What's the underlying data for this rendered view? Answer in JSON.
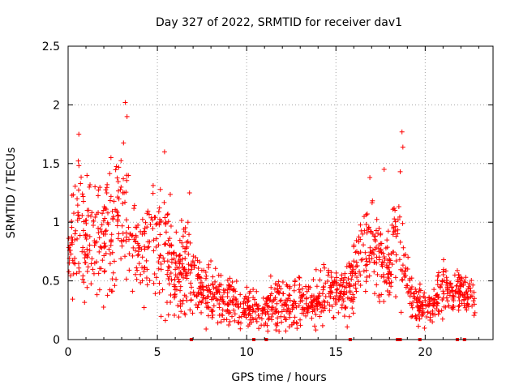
{
  "chart_data": {
    "type": "scatter",
    "title": "Day 327 of 2022, SRMTID for receiver dav1",
    "xlabel": "GPS time / hours",
    "ylabel": "SRMTID / TECUs",
    "xlim": [
      0,
      23.8
    ],
    "ylim": [
      0,
      2.5
    ],
    "x_ticks": [
      0,
      5,
      10,
      15,
      20
    ],
    "x_tick_labels": [
      "0",
      "5",
      "10",
      "15",
      "20"
    ],
    "y_ticks": [
      0,
      0.5,
      1,
      1.5,
      2,
      2.5
    ],
    "y_tick_labels": [
      "0",
      "0.5",
      "1",
      "1.5",
      "2",
      "2.5"
    ],
    "grid": true,
    "marker": "plus",
    "marker_color": "#ff0000",
    "profile": {
      "description": "approximate envelope of SRMTID scatter by hour: [hour, typical_low, typical_high]",
      "points": [
        [
          0.0,
          0.4,
          1.1
        ],
        [
          0.5,
          0.45,
          1.5
        ],
        [
          1.0,
          0.35,
          1.2
        ],
        [
          1.5,
          0.4,
          1.3
        ],
        [
          2.0,
          0.45,
          1.35
        ],
        [
          2.5,
          0.5,
          1.5
        ],
        [
          3.0,
          0.55,
          1.75
        ],
        [
          3.5,
          0.5,
          1.2
        ],
        [
          4.0,
          0.4,
          1.05
        ],
        [
          4.5,
          0.45,
          1.15
        ],
        [
          5.0,
          0.35,
          1.4
        ],
        [
          5.5,
          0.3,
          1.3
        ],
        [
          6.0,
          0.25,
          0.85
        ],
        [
          6.5,
          0.25,
          0.95
        ],
        [
          7.0,
          0.2,
          0.8
        ],
        [
          7.5,
          0.2,
          0.65
        ],
        [
          8.0,
          0.15,
          0.6
        ],
        [
          8.5,
          0.15,
          0.6
        ],
        [
          9.0,
          0.15,
          0.55
        ],
        [
          9.5,
          0.1,
          0.5
        ],
        [
          10.0,
          0.08,
          0.45
        ],
        [
          10.5,
          0.08,
          0.45
        ],
        [
          11.0,
          0.08,
          0.45
        ],
        [
          11.5,
          0.1,
          0.5
        ],
        [
          12.0,
          0.1,
          0.5
        ],
        [
          12.5,
          0.12,
          0.5
        ],
        [
          13.0,
          0.15,
          0.5
        ],
        [
          13.5,
          0.15,
          0.5
        ],
        [
          14.0,
          0.15,
          0.55
        ],
        [
          14.5,
          0.2,
          0.6
        ],
        [
          15.0,
          0.2,
          0.6
        ],
        [
          15.5,
          0.2,
          0.6
        ],
        [
          16.0,
          0.2,
          0.7
        ],
        [
          16.5,
          0.35,
          1.0
        ],
        [
          17.0,
          0.4,
          1.15
        ],
        [
          17.5,
          0.35,
          0.95
        ],
        [
          18.0,
          0.4,
          1.0
        ],
        [
          18.5,
          0.4,
          1.25
        ],
        [
          19.0,
          0.25,
          0.7
        ],
        [
          19.5,
          0.15,
          0.45
        ],
        [
          20.0,
          0.1,
          0.4
        ],
        [
          20.5,
          0.15,
          0.45
        ],
        [
          21.0,
          0.25,
          0.65
        ],
        [
          21.5,
          0.25,
          0.55
        ],
        [
          22.0,
          0.25,
          0.6
        ],
        [
          22.5,
          0.2,
          0.5
        ],
        [
          22.8,
          0.2,
          0.5
        ]
      ]
    },
    "outliers": [
      [
        0.6,
        1.75
      ],
      [
        3.2,
        2.02
      ],
      [
        3.3,
        1.9
      ],
      [
        5.4,
        1.6
      ],
      [
        18.7,
        1.77
      ],
      [
        18.75,
        1.64
      ],
      [
        17.7,
        1.45
      ],
      [
        18.6,
        1.43
      ],
      [
        16.9,
        1.38
      ],
      [
        2.4,
        1.55
      ],
      [
        6.8,
        1.25
      ]
    ],
    "zero_points": [
      6.9,
      10.4,
      11.1,
      15.8,
      18.45,
      18.6,
      19.7,
      21.8,
      22.2
    ]
  }
}
